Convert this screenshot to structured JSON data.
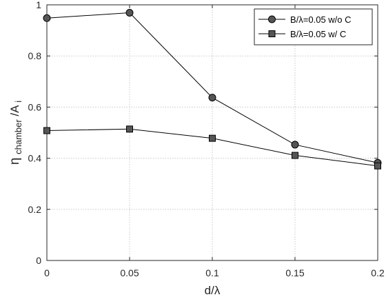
{
  "chart_data": {
    "type": "line",
    "x": [
      0,
      0.05,
      0.1,
      0.15,
      0.2
    ],
    "xlim": [
      0,
      0.2
    ],
    "ylim": [
      0,
      1
    ],
    "xticks": [
      "0",
      "0.05",
      "0.1",
      "0.15",
      "0.2"
    ],
    "yticks": [
      "0",
      "0.2",
      "0.4",
      "0.6",
      "0.8",
      "1"
    ],
    "xlabel": "d/λ",
    "ylabel_main": "η",
    "ylabel_sub": "chamber",
    "ylabel_rest": "/A",
    "ylabel_sub2": "i",
    "grid": true,
    "legend_position": "top-right",
    "series": [
      {
        "name": "B/λ=0.05 w/o C",
        "marker": "circle",
        "values": [
          0.948,
          0.969,
          0.637,
          0.453,
          0.382
        ]
      },
      {
        "name": "B/λ=0.05 w/   C",
        "marker": "square",
        "values": [
          0.508,
          0.514,
          0.478,
          0.411,
          0.37
        ]
      }
    ],
    "colors": {
      "line": "#000000",
      "marker_fill": "#555555",
      "grid": "#c8c8c8",
      "axis": "#262626"
    }
  }
}
